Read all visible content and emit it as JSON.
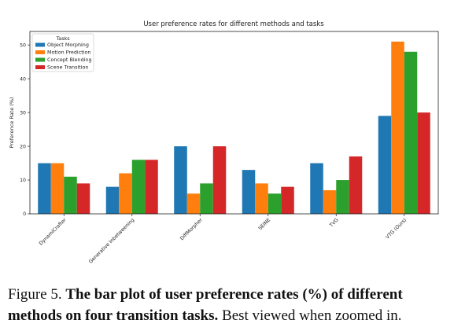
{
  "chart_data": {
    "type": "bar",
    "title": "User preference rates for different methods and tasks",
    "xlabel": "",
    "ylabel": "Preference Rate (%)",
    "ylim": [
      0,
      54
    ],
    "yticks": [
      0,
      10,
      20,
      30,
      40,
      50
    ],
    "grid": false,
    "legend_title": "Tasks",
    "legend_position": "top-left",
    "categories": [
      "DynamiCrafter",
      "Generative Inbetweening",
      "DiffMorpher",
      "SEINE",
      "TVG",
      "VTG (Ours)"
    ],
    "highlight_category_color": "#d62728",
    "highlight_category_index": 5,
    "series": [
      {
        "name": "Object Morphing",
        "color": "#1f77b4",
        "values": [
          15,
          8,
          20,
          13,
          15,
          29
        ]
      },
      {
        "name": "Motion Prediction",
        "color": "#ff7f0e",
        "values": [
          15,
          12,
          6,
          9,
          7,
          51
        ]
      },
      {
        "name": "Concept Blending",
        "color": "#2ca02c",
        "values": [
          11,
          16,
          9,
          6,
          10,
          48
        ]
      },
      {
        "name": "Scene Transition",
        "color": "#d62728",
        "values": [
          9,
          16,
          20,
          8,
          17,
          30
        ]
      }
    ]
  },
  "caption": {
    "label": "Figure 5.",
    "bold": "The bar plot of user preference rates (%) of different methods on four transition tasks.",
    "rest": "Best viewed when zoomed in."
  }
}
